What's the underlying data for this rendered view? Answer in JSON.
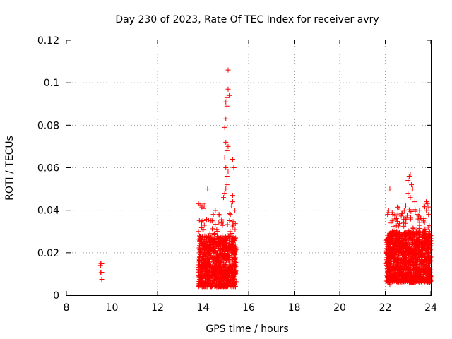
{
  "chart_data": {
    "type": "scatter",
    "title": "Day 230 of 2023, Rate Of TEC Index for receiver avry",
    "xlabel": "GPS time / hours",
    "ylabel": "ROTI / TECUs",
    "xlim": [
      8,
      24
    ],
    "ylim": [
      0,
      0.12
    ],
    "xticks": [
      "8",
      "10",
      "12",
      "14",
      "16",
      "18",
      "20",
      "22",
      "24"
    ],
    "yticks": [
      "0",
      "0.02",
      "0.04",
      "0.06",
      "0.08",
      "0.1",
      "0.12"
    ],
    "grid": true,
    "marker": "+",
    "color": "#ff0000",
    "series": [
      {
        "points": [
          [
            9.5,
            0.015
          ],
          [
            9.55,
            0.0148
          ],
          [
            9.5,
            0.014
          ],
          [
            9.55,
            0.0108
          ],
          [
            9.5,
            0.0105
          ],
          [
            9.55,
            0.0075
          ],
          [
            13.8,
            0.043
          ],
          [
            13.9,
            0.0425
          ],
          [
            14.0,
            0.0432
          ],
          [
            14.05,
            0.042
          ],
          [
            14.0,
            0.0408
          ],
          [
            13.95,
            0.0415
          ],
          [
            13.8,
            0.03
          ],
          [
            13.9,
            0.026
          ],
          [
            13.85,
            0.02
          ],
          [
            14.3,
            0.029
          ],
          [
            14.4,
            0.035
          ],
          [
            14.45,
            0.038
          ],
          [
            14.6,
            0.031
          ],
          [
            14.7,
            0.038
          ],
          [
            14.8,
            0.034
          ],
          [
            14.9,
            0.046
          ],
          [
            14.95,
            0.048
          ],
          [
            15.0,
            0.05
          ],
          [
            15.05,
            0.056
          ],
          [
            15.0,
            0.06
          ],
          [
            15.1,
            0.058
          ],
          [
            14.95,
            0.065
          ],
          [
            15.05,
            0.068
          ],
          [
            15.1,
            0.07
          ],
          [
            15.0,
            0.072
          ],
          [
            14.95,
            0.079
          ],
          [
            15.0,
            0.083
          ],
          [
            15.05,
            0.089
          ],
          [
            15.0,
            0.091
          ],
          [
            15.05,
            0.093
          ],
          [
            15.15,
            0.094
          ],
          [
            15.1,
            0.097
          ],
          [
            15.1,
            0.106
          ],
          [
            15.3,
            0.064
          ],
          [
            15.35,
            0.06
          ],
          [
            15.3,
            0.047
          ],
          [
            15.4,
            0.04
          ],
          [
            15.2,
            0.038
          ],
          [
            15.25,
            0.042
          ],
          [
            15.3,
            0.044
          ],
          [
            14.2,
            0.05
          ],
          [
            15.05,
            0.052
          ],
          [
            22.1,
            0.038
          ],
          [
            22.15,
            0.04
          ],
          [
            22.2,
            0.05
          ],
          [
            22.3,
            0.035
          ],
          [
            22.5,
            0.03
          ],
          [
            22.6,
            0.028
          ],
          [
            22.8,
            0.034
          ],
          [
            22.9,
            0.042
          ],
          [
            23.0,
            0.048
          ],
          [
            23.05,
            0.056
          ],
          [
            23.1,
            0.057
          ],
          [
            23.0,
            0.054
          ],
          [
            23.15,
            0.052
          ],
          [
            23.2,
            0.05
          ],
          [
            23.1,
            0.046
          ],
          [
            23.3,
            0.044
          ],
          [
            23.4,
            0.038
          ],
          [
            23.5,
            0.04
          ],
          [
            23.6,
            0.036
          ],
          [
            23.7,
            0.042
          ],
          [
            23.8,
            0.044
          ],
          [
            23.85,
            0.043
          ],
          [
            23.9,
            0.038
          ],
          [
            23.95,
            0.03
          ],
          [
            23.7,
            0.025
          ],
          [
            23.9,
            0.022
          ],
          [
            24.0,
            0.018
          ],
          [
            23.95,
            0.012
          ],
          [
            24.0,
            0.007
          ],
          [
            22.2,
            0.005
          ]
        ]
      }
    ],
    "clusters": [
      {
        "xmin": 13.8,
        "xmax": 15.45,
        "ymin": 0.004,
        "ymax": 0.028,
        "count": 900
      },
      {
        "xmin": 13.8,
        "xmax": 15.45,
        "ymin": 0.01,
        "ymax": 0.04,
        "count": 120
      },
      {
        "xmin": 22.05,
        "xmax": 24.0,
        "ymin": 0.006,
        "ymax": 0.03,
        "count": 1100
      },
      {
        "xmin": 22.05,
        "xmax": 24.0,
        "ymin": 0.015,
        "ymax": 0.042,
        "count": 180
      }
    ]
  }
}
